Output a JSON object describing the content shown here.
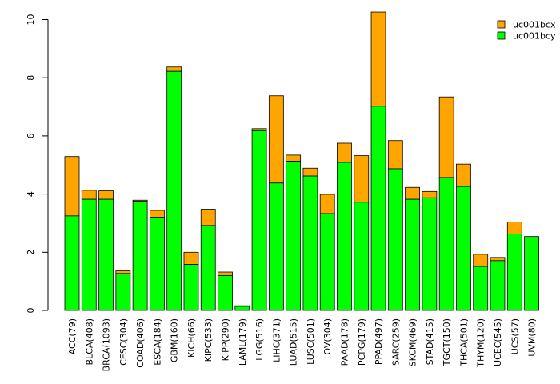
{
  "chart_data": {
    "type": "bar",
    "stacked": true,
    "categories": [
      "ACC(79)",
      "BLCA(408)",
      "BRCA(1093)",
      "CESC(304)",
      "COAD(406)",
      "ESCA(184)",
      "GBM(160)",
      "KICH(66)",
      "KIPC(533)",
      "KIPP(290)",
      "LAML(179)",
      "LGG(516)",
      "LIHC(371)",
      "LUAD(515)",
      "LUSC(501)",
      "OV(304)",
      "PAAD(178)",
      "PCPG(179)",
      "PPAD(497)",
      "SARC(259)",
      "SKCM(469)",
      "STAD(415)",
      "TGCT(150)",
      "THCA(501)",
      "THYM(120)",
      "UCEC(545)",
      "UCS(57)",
      "UVM(80)"
    ],
    "series": [
      {
        "name": "uc001bcy",
        "color": "#00ff00",
        "values": [
          3.25,
          3.82,
          3.82,
          1.27,
          3.75,
          3.2,
          8.22,
          1.58,
          2.92,
          1.2,
          0.14,
          6.18,
          4.38,
          5.13,
          4.62,
          3.33,
          5.09,
          3.72,
          7.02,
          4.87,
          3.82,
          3.87,
          4.57,
          4.26,
          1.51,
          1.71,
          2.63,
          2.54
        ]
      },
      {
        "name": "uc001bcx",
        "color": "#ffa500",
        "values": [
          2.04,
          0.31,
          0.29,
          0.09,
          0.04,
          0.24,
          0.15,
          0.42,
          0.56,
          0.12,
          0.02,
          0.07,
          3.0,
          0.21,
          0.27,
          0.66,
          0.66,
          1.6,
          3.24,
          0.97,
          0.41,
          0.22,
          2.77,
          0.77,
          0.42,
          0.11,
          0.41,
          0.0
        ]
      }
    ],
    "yticks": [
      0,
      2,
      4,
      6,
      8,
      10
    ],
    "ylim": [
      0,
      10.3
    ],
    "legend": {
      "placement": "top-right",
      "entries": [
        "uc001bcx",
        "uc001bcy"
      ]
    }
  }
}
